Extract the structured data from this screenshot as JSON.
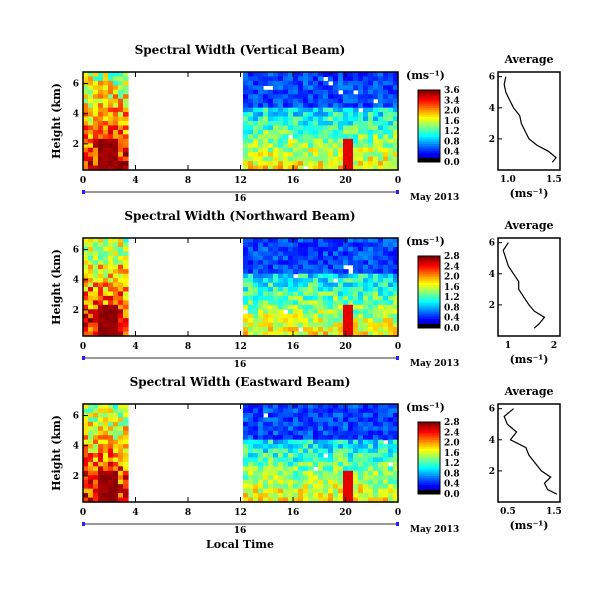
{
  "figure": {
    "date_label": "May 2013",
    "xlabel": "Local Time"
  },
  "chart_data": [
    {
      "type": "heatmap",
      "title": "Spectral Width (Vertical Beam)",
      "ylabel": "Height (km)",
      "x_ticks": [
        "0",
        "4",
        "8",
        "12",
        "16",
        "20",
        "0"
      ],
      "day_label": "16",
      "y_ticks": [
        "6",
        "4",
        "2"
      ],
      "colorbar": {
        "unit": "(ms⁻¹)",
        "ticks": [
          "3.6",
          "3.4",
          "2.0",
          "1.6",
          "1.2",
          "0.8",
          "0.4",
          "0.0"
        ]
      },
      "average": {
        "title": "Average",
        "xlabel": "(ms⁻¹)",
        "xticks": [
          "1.0",
          "1.5"
        ],
        "yticks": [
          "6",
          "4",
          "2"
        ],
        "xlim": [
          0.8,
          1.6
        ],
        "ylim": [
          0,
          6
        ],
        "profile_height": [
          0.5,
          0.8,
          1.2,
          1.6,
          2.0,
          2.5,
          3.0,
          3.5,
          4.0,
          4.5,
          5.0,
          5.5,
          6.0
        ],
        "profile_value": [
          1.5,
          1.55,
          1.45,
          1.3,
          1.2,
          1.15,
          1.1,
          1.08,
          1.0,
          0.95,
          0.9,
          0.88,
          0.9
        ]
      }
    },
    {
      "type": "heatmap",
      "title": "Spectral Width (Northward Beam)",
      "ylabel": "Height (km)",
      "x_ticks": [
        "0",
        "4",
        "8",
        "12",
        "16",
        "20",
        "0"
      ],
      "day_label": "16",
      "y_ticks": [
        "6",
        "4",
        "2"
      ],
      "colorbar": {
        "unit": "(ms⁻¹)",
        "ticks": [
          "2.8",
          "2.4",
          "2.0",
          "1.6",
          "1.2",
          "0.8",
          "0.4",
          "0.0"
        ]
      },
      "average": {
        "title": "Average",
        "xlabel": "(ms⁻¹)",
        "xticks": [
          "1",
          "2"
        ],
        "yticks": [
          "6",
          "4",
          "2"
        ],
        "xlim": [
          0.8,
          2.0
        ],
        "ylim": [
          0,
          6
        ],
        "profile_height": [
          0.5,
          0.8,
          1.2,
          1.6,
          2.0,
          2.5,
          3.0,
          3.5,
          4.0,
          4.5,
          5.0,
          5.5,
          6.0
        ],
        "profile_value": [
          1.5,
          1.6,
          1.7,
          1.5,
          1.4,
          1.3,
          1.2,
          1.2,
          1.1,
          1.0,
          0.95,
          0.9,
          1.0
        ]
      }
    },
    {
      "type": "heatmap",
      "title": "Spectral Width (Eastward Beam)",
      "ylabel": "Height (km)",
      "x_ticks": [
        "0",
        "4",
        "8",
        "12",
        "16",
        "20",
        "0"
      ],
      "day_label": "16",
      "y_ticks": [
        "6",
        "4",
        "2"
      ],
      "colorbar": {
        "unit": "(ms⁻¹)",
        "ticks": [
          "2.8",
          "2.4",
          "2.0",
          "1.6",
          "1.2",
          "0.8",
          "0.4",
          "0.0"
        ]
      },
      "average": {
        "title": "Average",
        "xlabel": "(ms⁻¹)",
        "xticks": [
          "0.5",
          "1.5"
        ],
        "yticks": [
          "6",
          "4",
          "2"
        ],
        "xlim": [
          0.5,
          1.5
        ],
        "ylim": [
          0,
          6
        ],
        "profile_height": [
          0.5,
          0.8,
          1.2,
          1.6,
          2.0,
          2.5,
          3.0,
          3.5,
          4.0,
          4.5,
          5.0,
          5.5,
          6.0
        ],
        "profile_value": [
          1.45,
          1.3,
          1.25,
          1.35,
          1.2,
          1.1,
          1.0,
          0.95,
          0.7,
          0.8,
          0.65,
          0.6,
          0.75
        ]
      }
    }
  ]
}
